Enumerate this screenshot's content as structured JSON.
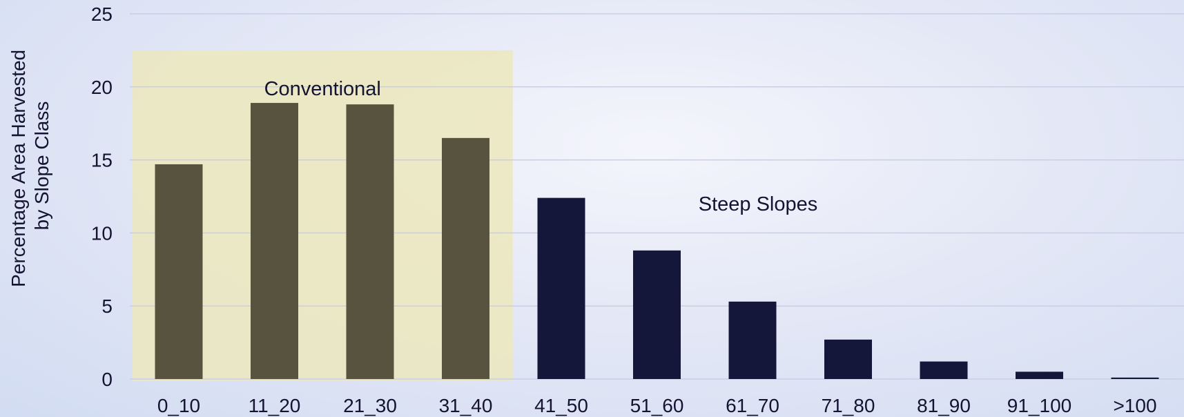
{
  "chart_data": {
    "type": "bar",
    "title": "",
    "xlabel": "",
    "ylabel": "Percentage Area Harvested by Slope Class",
    "ylabel_lines": [
      "Percentage Area Harvested",
      "by Slope Class"
    ],
    "categories": [
      "0_10",
      "11_20",
      "21_30",
      "31_40",
      "41_50",
      "51_60",
      "61_70",
      "71_80",
      "81_90",
      "91_100",
      ">100"
    ],
    "values": [
      14.7,
      18.9,
      18.8,
      16.5,
      12.4,
      8.8,
      5.3,
      2.7,
      1.2,
      0.5,
      0.1
    ],
    "ylim": [
      0,
      25
    ],
    "yticks": [
      0,
      5,
      10,
      15,
      20,
      25
    ],
    "grid": true,
    "legend": "none",
    "colors": {
      "conventional_bar": "#58533f",
      "steep_bar": "#14173a",
      "conventional_region": "#ece8bd",
      "gridline": "#c9cde6",
      "text": "#141432"
    },
    "regions": [
      {
        "label": "Conventional",
        "from_category": "0_10",
        "to_category": "31_40",
        "ymax": 22.5
      },
      {
        "label": "Steep Slopes",
        "from_category": "41_50",
        "to_category": ">100"
      }
    ]
  }
}
